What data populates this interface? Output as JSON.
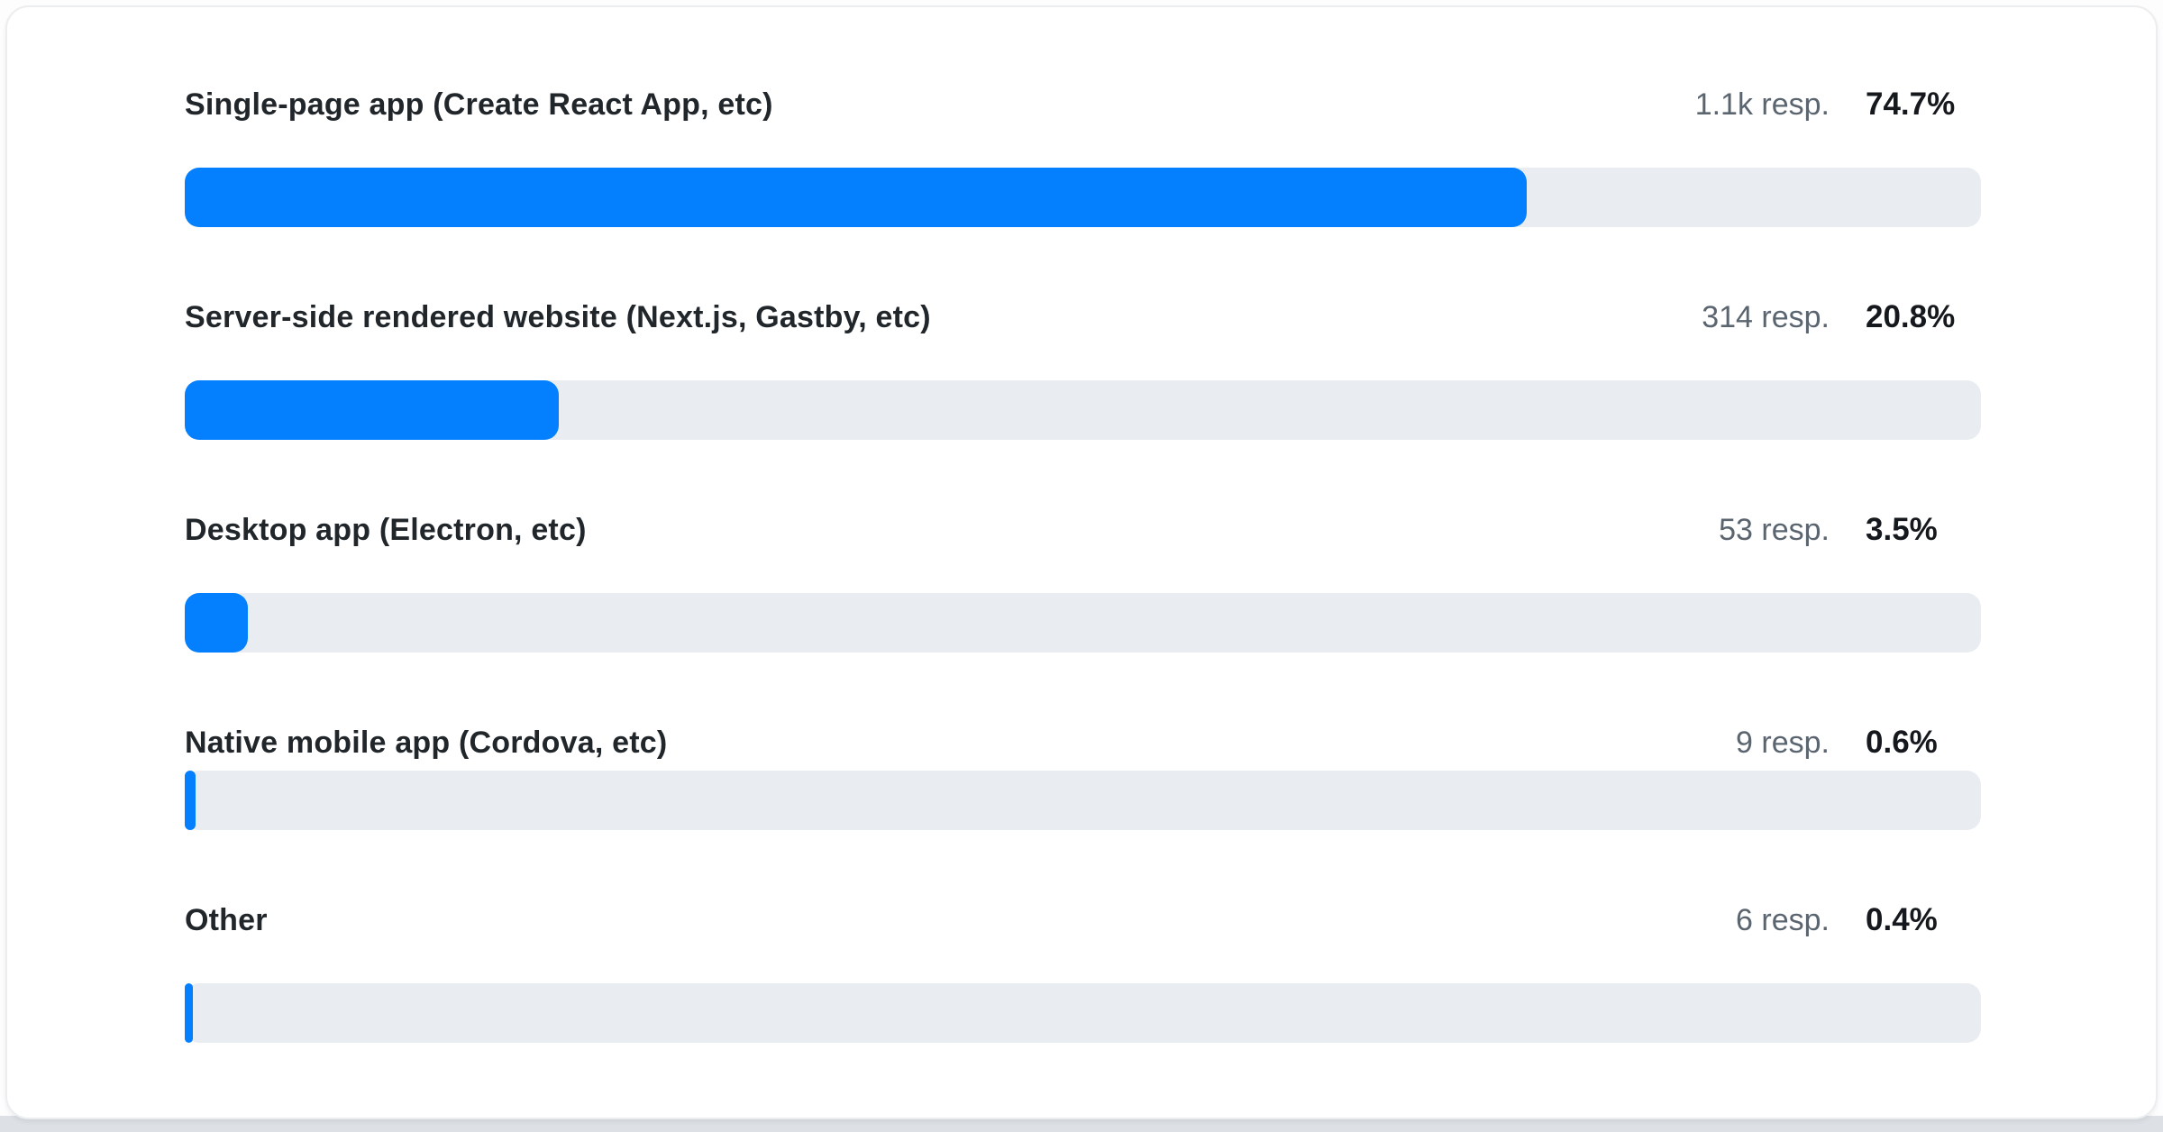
{
  "chart_data": {
    "type": "bar",
    "orientation": "horizontal",
    "title": "",
    "xlabel": "",
    "ylabel": "",
    "xlim": [
      0,
      100
    ],
    "unit": "percent",
    "grid": false,
    "legend": false,
    "categories": [
      "Single-page app (Create React App, etc)",
      "Server-side rendered website (Next.js, Gastby, etc)",
      "Desktop app (Electron, etc)",
      "Native mobile app (Cordova, etc)",
      "Other"
    ],
    "values": [
      74.7,
      20.8,
      3.5,
      0.6,
      0.4
    ],
    "percent_labels": [
      "74.7%",
      "20.8%",
      "3.5%",
      "0.6%",
      "0.4%"
    ],
    "responses": [
      "1.1k resp.",
      "314 resp.",
      "53 resp.",
      "9 resp.",
      "6 resp."
    ],
    "colors": {
      "bar_fill": "#0480ff",
      "bar_track": "#e9ecf0",
      "label_text": "#21262b",
      "response_text": "#5b6570",
      "percent_text": "#15181c"
    }
  }
}
